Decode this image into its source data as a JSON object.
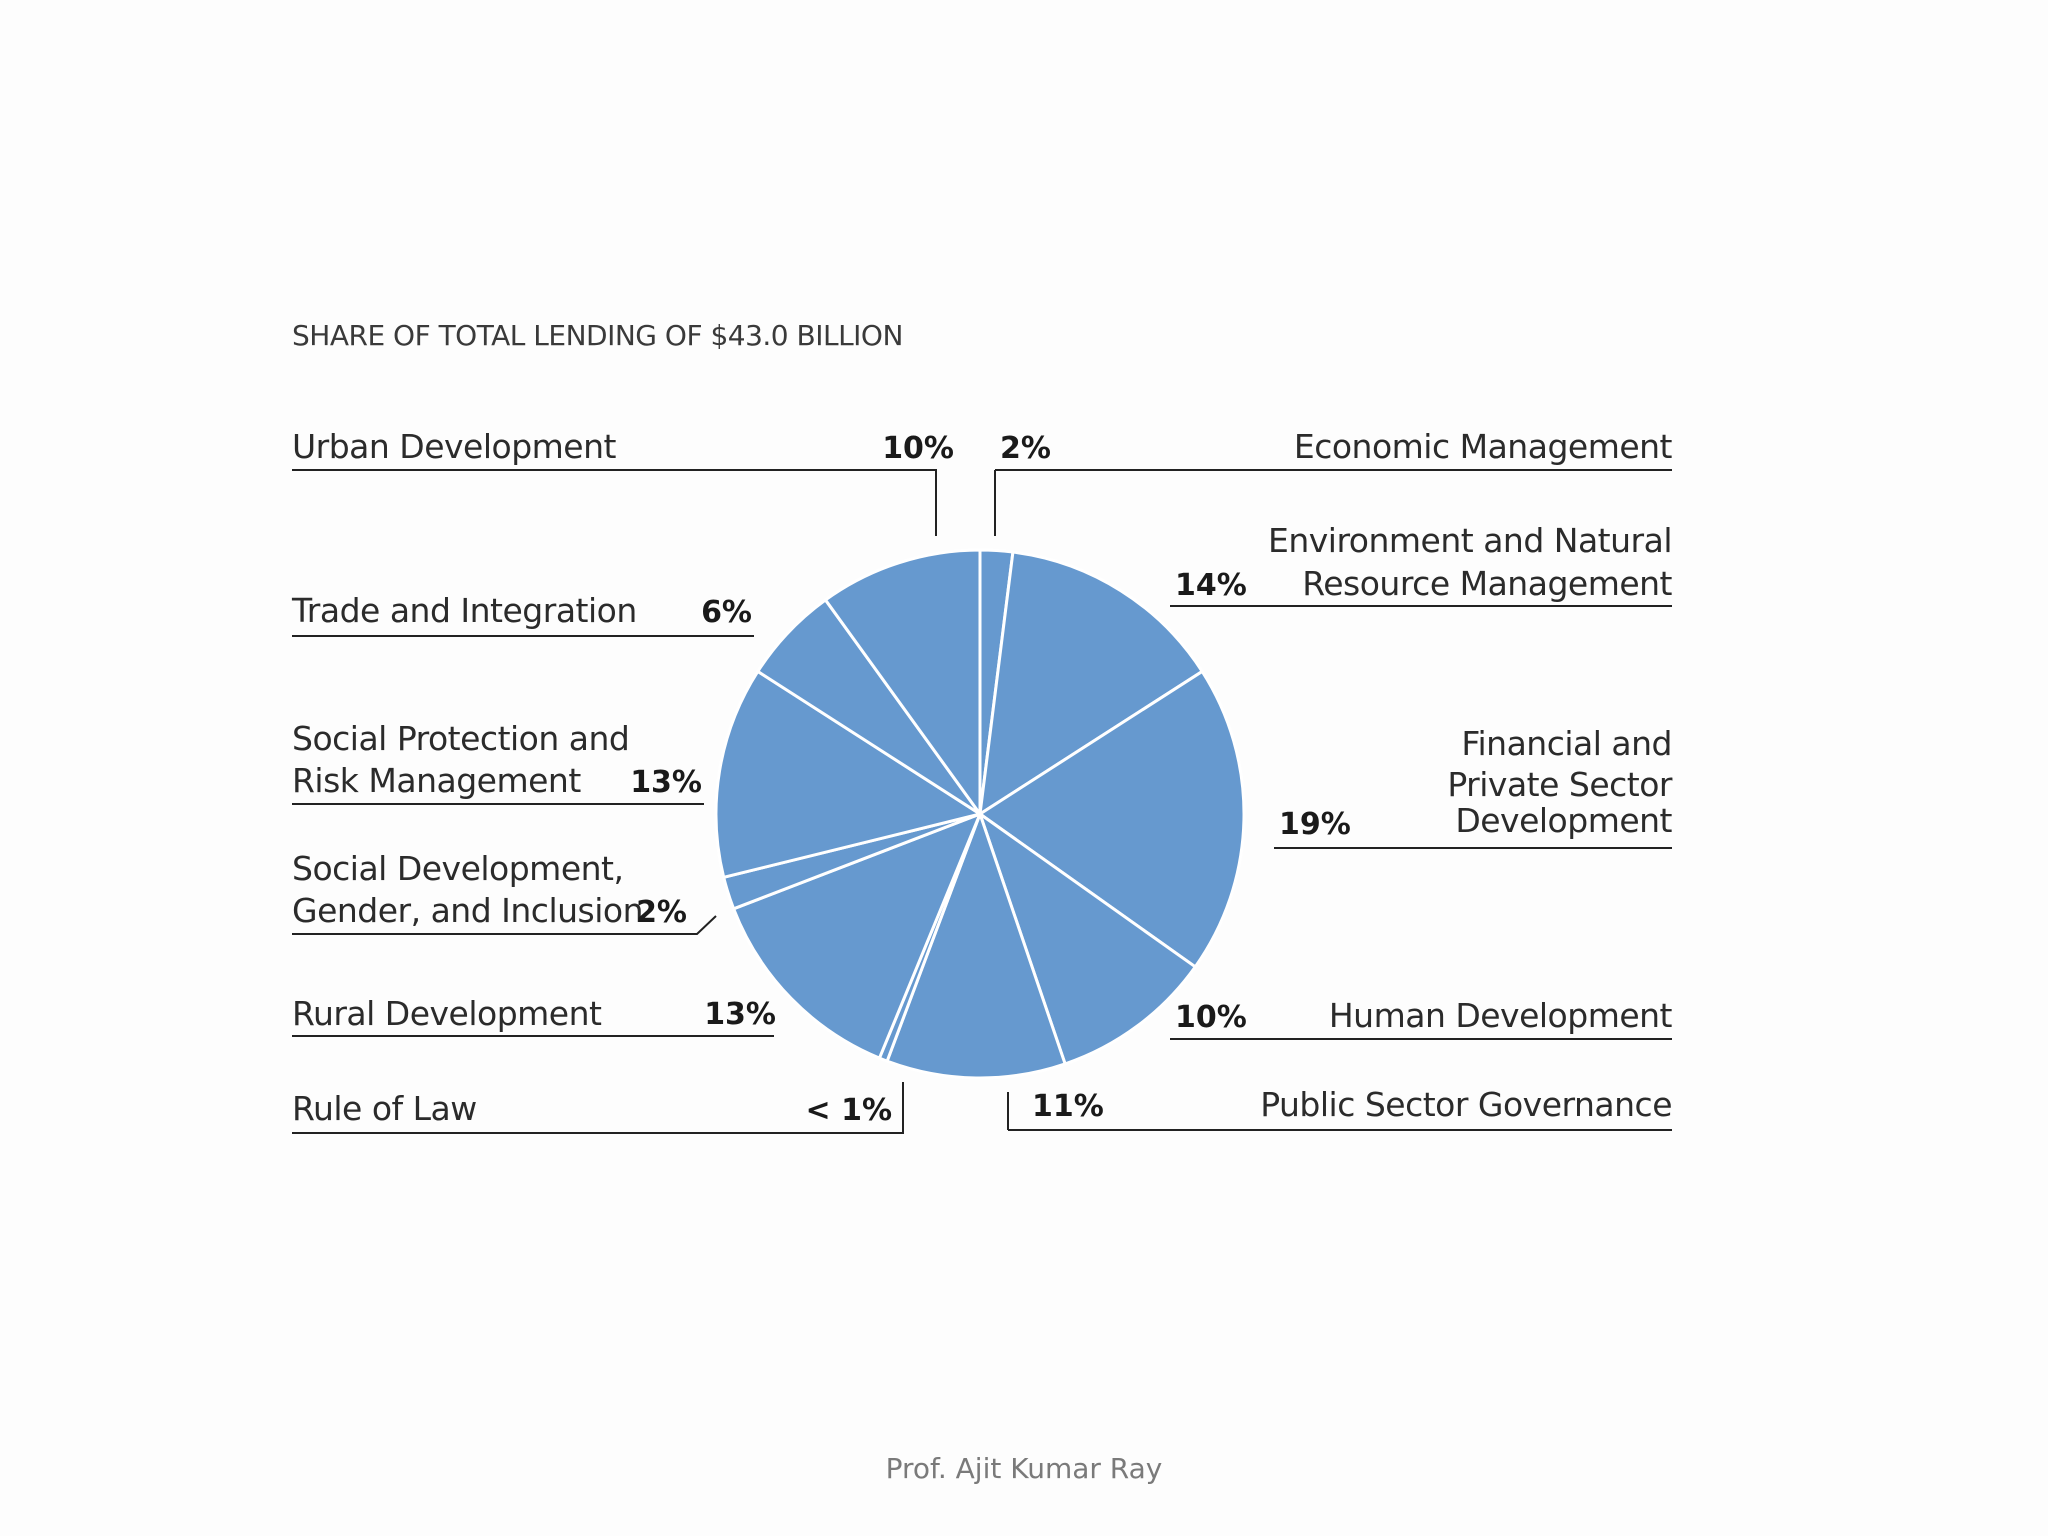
{
  "chart_data": {
    "type": "pie",
    "title": "SHARE OF TOTAL LENDING OF $43.0 BILLION",
    "slice_color": "#6699cf",
    "slices": [
      {
        "label": [
          "Economic Management"
        ],
        "value": 2,
        "pct_label": "2%"
      },
      {
        "label": [
          "Environment and Natural",
          "Resource Management"
        ],
        "value": 14,
        "pct_label": "14%"
      },
      {
        "label": [
          "Financial and",
          "Private Sector",
          "Development"
        ],
        "value": 19,
        "pct_label": "19%"
      },
      {
        "label": [
          "Human Development"
        ],
        "value": 10,
        "pct_label": "10%"
      },
      {
        "label": [
          "Public Sector Governance"
        ],
        "value": 11,
        "pct_label": "11%"
      },
      {
        "label": [
          "Rule of Law"
        ],
        "value": 0.5,
        "pct_label": "< 1%"
      },
      {
        "label": [
          "Rural Development"
        ],
        "value": 13,
        "pct_label": "13%"
      },
      {
        "label": [
          "Social Development,",
          "Gender, and Inclusion"
        ],
        "value": 2,
        "pct_label": "2%"
      },
      {
        "label": [
          "Social Protection and",
          "Risk Management"
        ],
        "value": 13,
        "pct_label": "13%"
      },
      {
        "label": [
          "Trade and Integration"
        ],
        "value": 6,
        "pct_label": "6%"
      },
      {
        "label": [
          "Urban Development"
        ],
        "value": 10,
        "pct_label": "10%"
      }
    ]
  },
  "footer": "Prof. Ajit Kumar Ray"
}
